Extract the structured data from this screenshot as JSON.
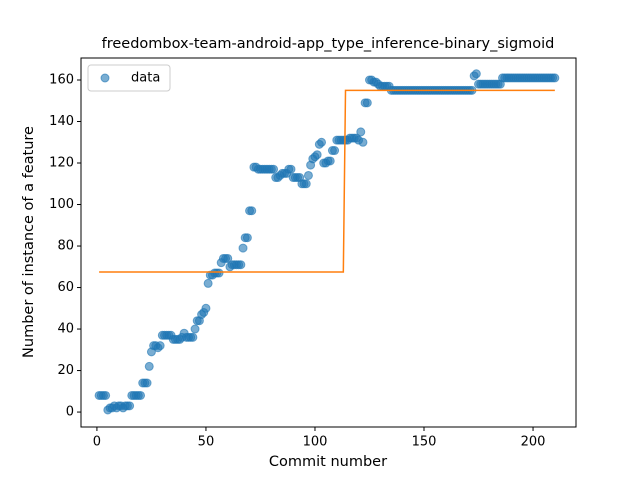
{
  "chart_data": {
    "type": "scatter",
    "title": "freedombox-team-android-app_type_inference-binary_sigmoid",
    "x_label": "Commit number",
    "y_label": "Number of instance of a feature",
    "xlim": [
      -7.3,
      219.7
    ],
    "ylim": [
      -7.2,
      170.6
    ],
    "xticks": [
      0,
      50,
      100,
      150,
      200
    ],
    "yticks": [
      0,
      20,
      40,
      60,
      80,
      100,
      120,
      140,
      160
    ],
    "legend": "upper left",
    "series": [
      {
        "name": "data",
        "color": "#1f77b4",
        "x": [
          1,
          2,
          3,
          4,
          5,
          6,
          7,
          8,
          9,
          10,
          11,
          12,
          13,
          14,
          15,
          16,
          17,
          18,
          19,
          20,
          21,
          22,
          23,
          24,
          25,
          26,
          27,
          28,
          29,
          30,
          31,
          32,
          33,
          34,
          35,
          36,
          37,
          38,
          39,
          40,
          41,
          42,
          43,
          44,
          45,
          46,
          47,
          48,
          49,
          50,
          51,
          52,
          53,
          54,
          55,
          56,
          57,
          58,
          59,
          60,
          61,
          62,
          63,
          64,
          65,
          66,
          67,
          68,
          69,
          70,
          71,
          72,
          73,
          74,
          75,
          76,
          77,
          78,
          79,
          80,
          81,
          82,
          83,
          84,
          85,
          86,
          87,
          88,
          89,
          90,
          91,
          92,
          93,
          94,
          95,
          96,
          97,
          98,
          99,
          100,
          101,
          102,
          103,
          104,
          105,
          106,
          107,
          108,
          109,
          110,
          111,
          112,
          113,
          114,
          115,
          116,
          117,
          118,
          119,
          120,
          121,
          122,
          123,
          124,
          125,
          126,
          127,
          128,
          129,
          130,
          131,
          132,
          133,
          134,
          135,
          136,
          137,
          138,
          139,
          140,
          141,
          142,
          143,
          144,
          145,
          146,
          147,
          148,
          149,
          150,
          151,
          152,
          153,
          154,
          155,
          156,
          157,
          158,
          159,
          160,
          161,
          162,
          163,
          164,
          165,
          166,
          167,
          168,
          169,
          170,
          171,
          172,
          173,
          174,
          175,
          176,
          177,
          178,
          179,
          180,
          181,
          182,
          183,
          184,
          185,
          186,
          187,
          188,
          189,
          190,
          191,
          192,
          193,
          194,
          195,
          196,
          197,
          198,
          199,
          200,
          201,
          202,
          203,
          204,
          205,
          206,
          207,
          208,
          209,
          210
        ],
        "values": [
          8,
          8,
          8,
          8,
          1,
          2,
          2,
          3,
          2,
          3,
          3,
          2,
          3,
          3,
          3,
          8,
          8,
          8,
          8,
          8,
          14,
          14,
          14,
          22,
          29,
          32,
          32,
          31,
          32,
          37,
          37,
          37,
          37,
          37,
          35,
          35,
          35,
          35,
          36,
          38,
          36,
          36,
          36,
          36,
          40,
          44,
          44,
          47,
          48,
          50,
          62,
          66,
          66,
          67,
          67,
          67,
          72,
          74,
          74,
          74,
          70,
          71,
          71,
          71,
          71,
          71,
          79,
          84,
          84,
          97,
          97,
          118,
          118,
          117,
          117,
          117,
          117,
          117,
          117,
          117,
          117,
          113,
          113,
          114,
          115,
          115,
          115,
          117,
          117,
          113,
          113,
          113,
          113,
          110,
          110,
          110,
          114,
          119,
          122,
          123,
          124,
          129,
          130,
          120,
          120,
          121,
          121,
          126,
          126,
          131,
          131,
          131,
          131,
          131,
          131,
          132,
          132,
          132,
          132,
          131,
          135,
          130,
          149,
          149,
          160,
          160,
          159,
          159,
          158,
          157,
          157,
          157,
          157,
          157,
          155,
          155,
          155,
          155,
          155,
          155,
          155,
          155,
          155,
          155,
          155,
          155,
          155,
          155,
          155,
          155,
          155,
          155,
          155,
          155,
          155,
          155,
          155,
          155,
          155,
          155,
          155,
          155,
          155,
          155,
          155,
          155,
          155,
          155,
          155,
          155,
          155,
          155,
          162,
          163,
          158,
          158,
          158,
          158,
          158,
          158,
          158,
          158,
          158,
          158,
          158,
          161,
          161,
          161,
          161,
          161,
          161,
          161,
          161,
          161,
          161,
          161,
          161,
          161,
          161,
          161,
          161,
          161,
          161,
          161,
          161,
          161,
          161,
          161,
          161,
          161
        ]
      },
      {
        "type": "line",
        "color": "#ff7f0e",
        "x": [
          1,
          113,
          114,
          210
        ],
        "values": [
          67.5,
          67.5,
          155,
          155
        ]
      }
    ]
  }
}
